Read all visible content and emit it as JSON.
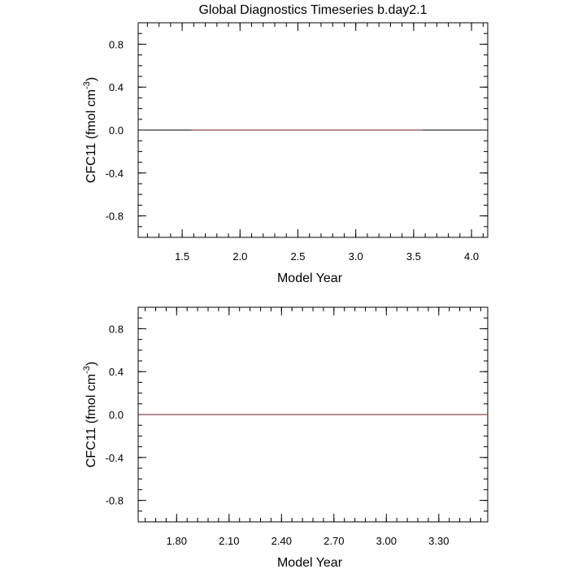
{
  "title": "Global Diagnostics Timeseries b.day2.1",
  "chart_data": [
    {
      "type": "line",
      "xlabel": "Model Year",
      "ylabel": "CFC11  (fmol cm",
      "ylabel_sup": "-3",
      "ylabel_close": ")",
      "xlim": [
        1.12,
        4.14
      ],
      "ylim": [
        -1.0,
        1.0
      ],
      "x_ticks": [
        1.5,
        2.0,
        2.5,
        3.0,
        3.5,
        4.0
      ],
      "x_tick_labels": [
        "1.5",
        "2.0",
        "2.5",
        "3.0",
        "3.5",
        "4.0"
      ],
      "x_minor_step": 0.1,
      "y_ticks": [
        0.8,
        0.4,
        0.0,
        -0.4,
        -0.8
      ],
      "y_tick_labels": [
        "0.8",
        "0.4",
        "0.0",
        "-0.4",
        "-0.8"
      ],
      "y_minor_step": 0.1,
      "zero_line": true,
      "grid": false,
      "series": [
        {
          "color": "#8B4A4A",
          "x": [
            1.58,
            3.58
          ],
          "y": [
            0.0,
            0.0
          ]
        }
      ]
    },
    {
      "type": "line",
      "xlabel": "Model Year",
      "ylabel": "CFC11  (fmol cm",
      "ylabel_sup": "-3",
      "ylabel_close": ")",
      "xlim": [
        1.58,
        3.58
      ],
      "ylim": [
        -1.0,
        1.0
      ],
      "x_ticks": [
        1.8,
        2.1,
        2.4,
        2.7,
        3.0,
        3.3
      ],
      "x_tick_labels": [
        "1.80",
        "2.10",
        "2.40",
        "2.70",
        "3.00",
        "3.30"
      ],
      "x_minor_step": 0.06,
      "y_ticks": [
        0.8,
        0.4,
        0.0,
        -0.4,
        -0.8
      ],
      "y_tick_labels": [
        "0.8",
        "0.4",
        "0.0",
        "-0.4",
        "-0.8"
      ],
      "y_minor_step": 0.1,
      "zero_line": true,
      "grid": false,
      "series": [
        {
          "color": "#8B4A4A",
          "x": [
            1.58,
            3.58
          ],
          "y": [
            0.0,
            0.0
          ]
        }
      ]
    }
  ]
}
